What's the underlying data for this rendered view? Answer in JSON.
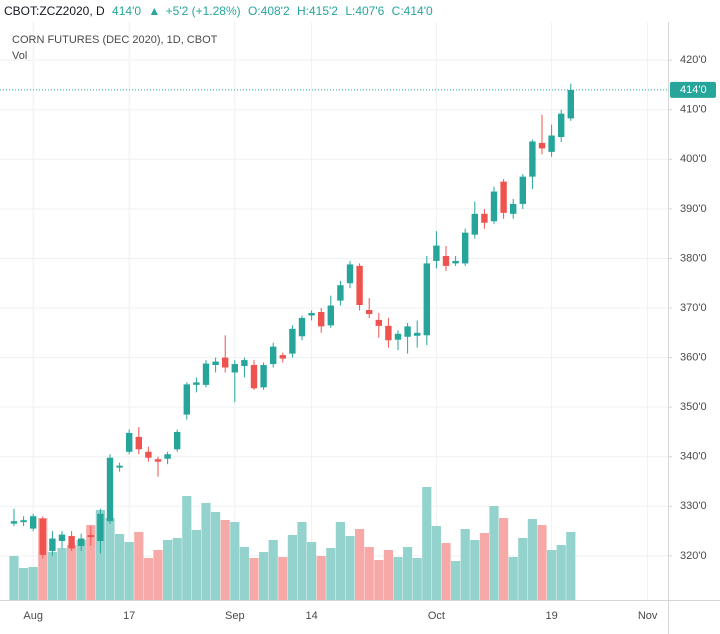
{
  "header": {
    "symbol": "CBOT:ZCZ2020, D",
    "last": "414'0",
    "change": "+5'2 (+1.28%)",
    "open": "O:408'2",
    "high": "H:415'2",
    "low": "L:407'6",
    "close": "C:414'0"
  },
  "chart_data": {
    "type": "candlestick",
    "title": "CORN FUTURES (DEC 2020), 1D, CBOT",
    "subtitle": "Vol",
    "categories": [
      null,
      null,
      "Aug",
      null,
      null,
      null,
      null,
      null,
      null,
      null,
      null,
      null,
      "17",
      null,
      null,
      null,
      null,
      null,
      null,
      null,
      null,
      null,
      null,
      "Sep",
      null,
      null,
      null,
      null,
      null,
      null,
      null,
      "14",
      null,
      null,
      null,
      null,
      null,
      null,
      null,
      null,
      null,
      null,
      null,
      null,
      "Oct",
      null,
      null,
      null,
      null,
      null,
      null,
      null,
      null,
      null,
      null,
      null,
      "19",
      null,
      null,
      null,
      null,
      null,
      null,
      null,
      null,
      null,
      "Nov"
    ],
    "open": [
      326.5,
      326.8,
      325.5,
      327.5,
      321,
      323,
      324,
      322,
      324.2,
      323,
      327,
      337.8,
      341,
      344,
      341,
      339.5,
      339.6,
      341.5,
      348.5,
      354.5,
      354.5,
      358.5,
      360,
      357,
      358.3,
      358.5,
      354,
      358.7,
      360.5,
      360.8,
      364.3,
      368.5,
      369.2,
      366.5,
      371.5,
      375,
      378.5,
      369.6,
      367.6,
      366.4,
      363.6,
      364.2,
      364.4,
      364.5,
      379.5,
      380.5,
      379,
      379,
      384.8,
      389,
      387.5,
      395.5,
      389,
      391,
      396.5,
      403.3,
      401.5,
      404.5,
      408.25,
      null,
      null,
      null,
      null,
      null,
      null,
      null,
      null
    ],
    "high": [
      329.5,
      328,
      328.5,
      328,
      325,
      325,
      325,
      324.5,
      326,
      329.5,
      340.5,
      338.8,
      345.5,
      346,
      342,
      340,
      341,
      345.5,
      355,
      356,
      359.5,
      360,
      364.5,
      359.5,
      360,
      359.5,
      359,
      363,
      361,
      366.5,
      368.5,
      369.5,
      370,
      372.5,
      375.5,
      379.5,
      379,
      372,
      369,
      368,
      365.5,
      367,
      367.5,
      380.5,
      385.5,
      382.5,
      380.5,
      386,
      391.5,
      390,
      394.5,
      396,
      392,
      397,
      404,
      409,
      407,
      410,
      415.25,
      null,
      null,
      null,
      null,
      null,
      null,
      null,
      null
    ],
    "low": [
      326,
      326,
      325,
      319.5,
      320,
      321.5,
      321,
      321,
      322,
      320.5,
      326.5,
      337,
      340.5,
      340.5,
      339,
      336,
      338.5,
      341,
      347.5,
      353,
      354,
      357,
      357,
      351,
      356,
      353.5,
      353.5,
      358,
      359,
      360,
      363.5,
      367.5,
      365,
      366,
      370.5,
      374,
      369.5,
      368,
      364,
      362,
      361.5,
      360.8,
      362,
      362.5,
      378,
      377.5,
      378.5,
      378.5,
      384,
      386,
      387,
      388,
      388,
      390,
      394,
      401,
      400.5,
      403.5,
      407.75,
      null,
      null,
      null,
      null,
      null,
      null,
      null,
      null
    ],
    "close": [
      327,
      327.2,
      328,
      320.2,
      323.5,
      324.3,
      321.5,
      323.5,
      323.8,
      328.5,
      339.8,
      338.2,
      344.8,
      341.5,
      339.8,
      339,
      340.5,
      345,
      354.6,
      355,
      358.8,
      359.2,
      358,
      358.7,
      359.5,
      353.8,
      358.5,
      362.2,
      359.8,
      365.8,
      368,
      369,
      366.3,
      370.5,
      374.6,
      378.8,
      370.6,
      368.8,
      366.4,
      363.5,
      364.8,
      366.3,
      365,
      379,
      382.6,
      378.5,
      379.5,
      385.2,
      389,
      387.2,
      393.5,
      389.2,
      391,
      396.5,
      403.6,
      402.2,
      404.8,
      409.2,
      414,
      null,
      null,
      null,
      null,
      null,
      null,
      null,
      null
    ],
    "volume": [
      44,
      32,
      33,
      82,
      48,
      52,
      55,
      60,
      75,
      90,
      82,
      66,
      58,
      68,
      42,
      50,
      60,
      62,
      104,
      70,
      97,
      88,
      80,
      78,
      53,
      42,
      48,
      60,
      43,
      65,
      78,
      58,
      44,
      52,
      78,
      64,
      71,
      53,
      40,
      50,
      43,
      53,
      42,
      113,
      74,
      57,
      39,
      71,
      60,
      67,
      94,
      82,
      43,
      62,
      81,
      75,
      50,
      55,
      68,
      null,
      null,
      null,
      null,
      null,
      null,
      null,
      null
    ],
    "ylim": [
      311.1,
      427.7
    ],
    "yticks": [
      {
        "value": 320,
        "label": "320'0"
      },
      {
        "value": 330,
        "label": "330'0"
      },
      {
        "value": 340,
        "label": "340'0"
      },
      {
        "value": 350,
        "label": "350'0"
      },
      {
        "value": 360,
        "label": "360'0"
      },
      {
        "value": 370,
        "label": "370'0"
      },
      {
        "value": 380,
        "label": "380'0"
      },
      {
        "value": 390,
        "label": "390'0"
      },
      {
        "value": 400,
        "label": "400'0"
      },
      {
        "value": 410,
        "label": "410'0"
      },
      {
        "value": 420,
        "label": "420'0"
      }
    ],
    "volume_lim": [
      0,
      120
    ],
    "last_price": {
      "value": 414,
      "label": "414'0"
    },
    "grid": true,
    "up_color": "#26a69a",
    "down_color": "#ef5350",
    "volume_up_color": "#94d3cd",
    "volume_down_color": "#f7a9a7"
  }
}
